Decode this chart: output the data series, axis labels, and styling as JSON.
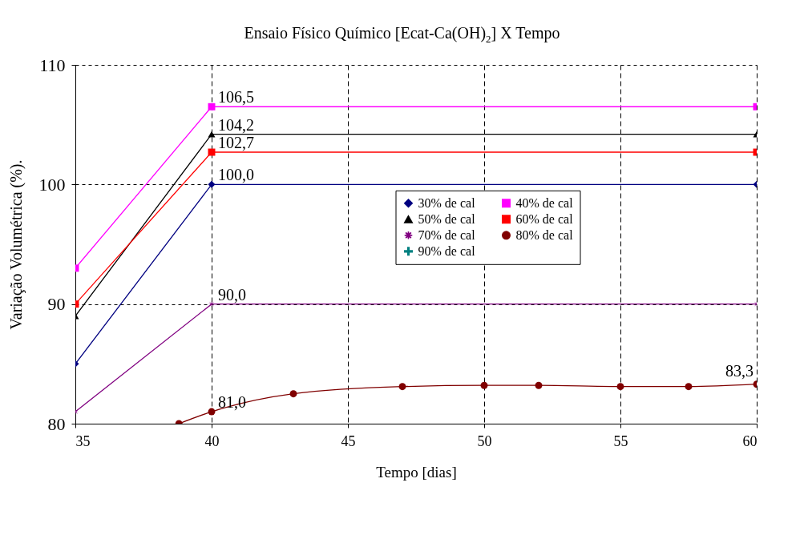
{
  "chart_data": {
    "type": "line",
    "title": "Ensaio Físico Químico [Ecat-Ca(OH)$_{2}$] X Tempo",
    "xlabel": "Tempo [dias]",
    "ylabel": "Variação Volumétrica (%).",
    "x": [
      35,
      40,
      60
    ],
    "xlim": [
      35,
      60
    ],
    "xticks": [
      35,
      40,
      45,
      50,
      55,
      60
    ],
    "ylim": [
      80,
      110
    ],
    "yticks": [
      80,
      90,
      100,
      110
    ],
    "grid": true,
    "line_style": "solid",
    "legend": "right",
    "series": [
      {
        "name": "30% de cal",
        "color": "#000080",
        "marker": "diamond",
        "values": [
          85,
          100,
          100
        ],
        "value_labels": [
          null,
          "100,0",
          null
        ]
      },
      {
        "name": "40% de cal",
        "color": "#ff00ff",
        "marker": "square",
        "values": [
          93,
          106.5,
          106.5
        ],
        "value_labels": [
          null,
          "106,5",
          null
        ]
      },
      {
        "name": "50% de cal",
        "color": "#000000",
        "marker": "triangle",
        "values": [
          89,
          104.2,
          104.2
        ],
        "value_labels": [
          null,
          "104,2",
          null
        ]
      },
      {
        "name": "60% de cal",
        "color": "#ff0000",
        "marker": "square",
        "values": [
          90,
          102.7,
          102.7
        ],
        "value_labels": [
          null,
          "102,7",
          null
        ]
      },
      {
        "name": "70% de cal",
        "color": "#800080",
        "marker": "star",
        "values": [
          81,
          90,
          90
        ],
        "value_labels": [
          null,
          "90,0",
          null
        ]
      },
      {
        "name": "80% de cal",
        "color": "#800000",
        "marker": "circle",
        "x": [
          38.8,
          40,
          43,
          47,
          50,
          52,
          55,
          57.5,
          60
        ],
        "values": [
          80,
          81,
          82.5,
          83.1,
          83.2,
          83.2,
          83.1,
          83.1,
          83.3
        ],
        "value_labels": [
          null,
          "81,0",
          null,
          null,
          null,
          null,
          null,
          null,
          "83,3"
        ]
      },
      {
        "name": "90% de cal",
        "color": "#008080",
        "marker": "cross",
        "values": [
          null,
          null,
          null
        ],
        "value_labels": [
          null,
          null,
          null
        ]
      }
    ]
  }
}
